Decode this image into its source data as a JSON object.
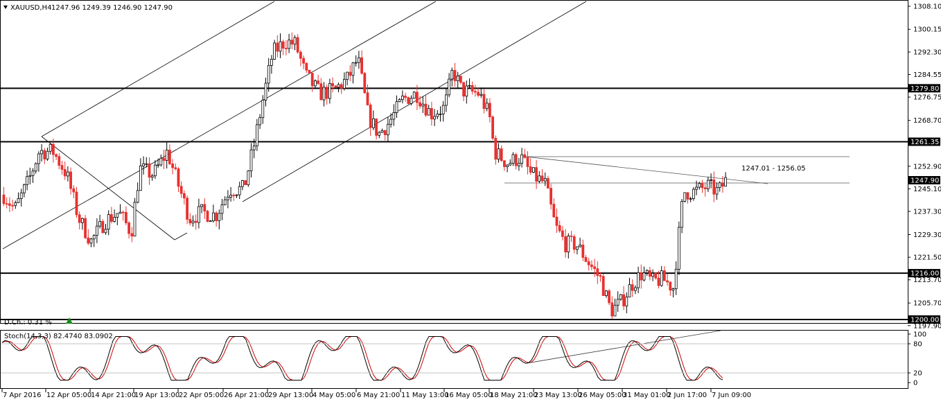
{
  "window": {
    "symbol_label": "XAUUSD,H4",
    "ohlc_label": "1247.96 1249.39 1246.90 1247.90"
  },
  "price_axis": {
    "ticks": [
      "1308.10",
      "1300.15",
      "1292.30",
      "1284.55",
      "1276.75",
      "1268.70",
      "1252.90",
      "1245.10",
      "1237.30",
      "1229.30",
      "1221.50",
      "1213.70",
      "1205.70",
      "1197.90"
    ]
  },
  "level_tags": [
    {
      "label": "1279.80",
      "value": 1279.8
    },
    {
      "label": "1261.35",
      "value": 1261.35
    },
    {
      "label": "1216.00",
      "value": 1216.0
    },
    {
      "label": "1200.00",
      "value": 1200.0
    }
  ],
  "current_price_tag": {
    "label": "1247.90",
    "value": 1247.9
  },
  "range_annotation": "1247.01 - 1256.05",
  "daily_change": {
    "text": "D.Ch.: 0.31 %",
    "color": "#1a8c1a",
    "arrow": "up-triangle-icon"
  },
  "stoch": {
    "label": "Stoch(14,3,3) 82.4740 83.0902",
    "ticks": [
      "100",
      "80",
      "20",
      "0"
    ]
  },
  "time_axis": {
    "labels": [
      "7 Apr 2016",
      "12 Apr 05:00",
      "14 Apr 21:00",
      "19 Apr 13:00",
      "22 Apr 05:00",
      "26 Apr 21:00",
      "29 Apr 13:00",
      "4 May 05:00",
      "6 May 21:00",
      "11 May 13:00",
      "16 May 05:00",
      "18 May 21:00",
      "23 May 13:00",
      "26 May 05:00",
      "31 May 01:00",
      "2 Jun 17:00",
      "7 Jun 09:00"
    ]
  },
  "colors": {
    "bull": "#000000",
    "bear": "#e8312f",
    "stoch_main": "#000000",
    "stoch_signal": "#cc0000",
    "level_line": "#000000"
  }
}
